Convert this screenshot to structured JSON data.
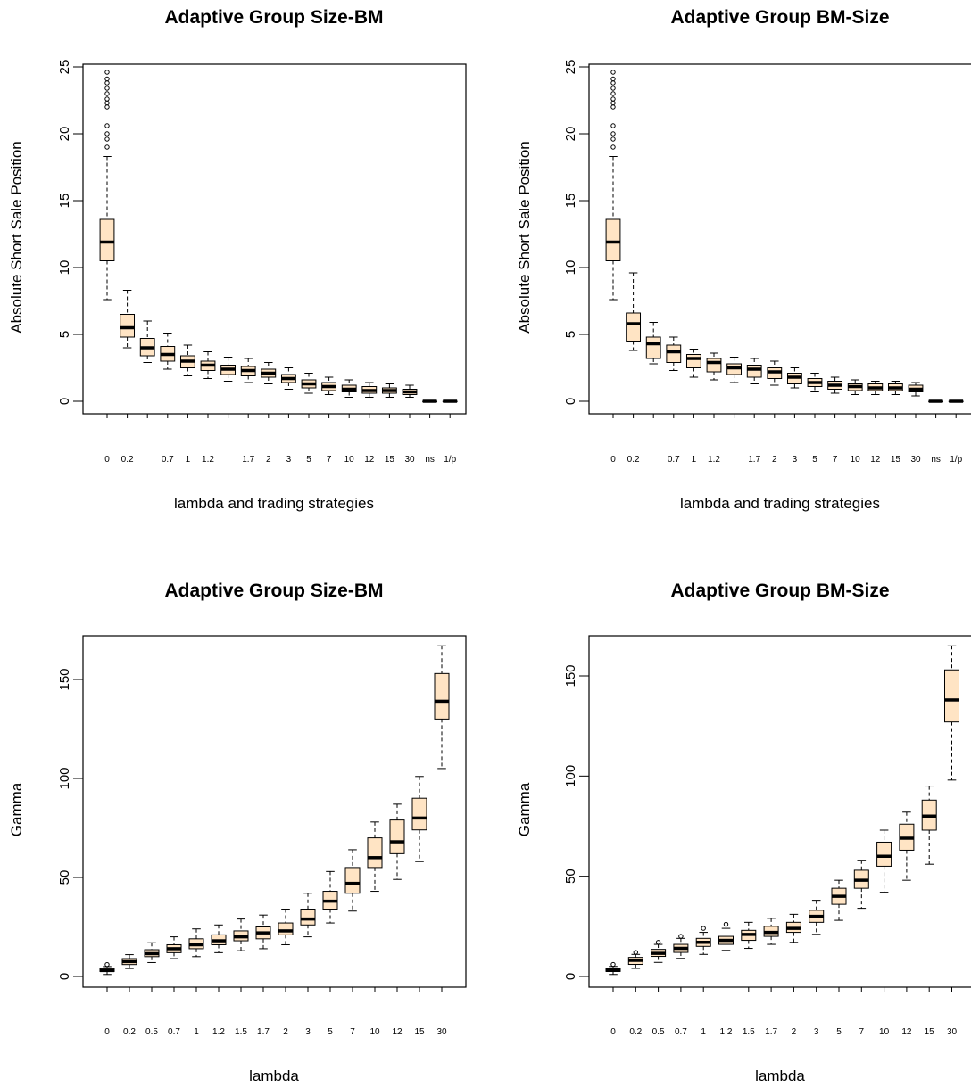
{
  "chart_data": [
    {
      "type": "boxplot",
      "title": "Adaptive Group Size-BM",
      "xlabel": "lambda and trading strategies",
      "ylabel": "Absolute Short Sale Position",
      "ylim": [
        0,
        25
      ],
      "yticks": [
        0,
        5,
        10,
        15,
        20,
        25
      ],
      "categories": [
        "0",
        "0.2",
        "",
        "0.7",
        "1",
        "1.2",
        "",
        "1.7",
        "2",
        "3",
        "5",
        "7",
        "10",
        "12",
        "15",
        "30",
        "ns",
        "1/p"
      ],
      "box_color": "#FFE4C4",
      "boxes": [
        {
          "whislo": 7.6,
          "q1": 10.5,
          "med": 11.9,
          "q3": 13.6,
          "whishi": 18.3,
          "outliers": [
            19.0,
            19.6,
            20.0,
            20.6,
            22.0,
            22.3,
            22.6,
            23.0,
            23.4,
            23.8,
            24.1,
            24.6
          ]
        },
        {
          "whislo": 4.0,
          "q1": 4.8,
          "med": 5.5,
          "q3": 6.5,
          "whishi": 8.3,
          "outliers": []
        },
        {
          "whislo": 2.9,
          "q1": 3.4,
          "med": 4.0,
          "q3": 4.7,
          "whishi": 6.0,
          "outliers": []
        },
        {
          "whislo": 2.4,
          "q1": 3.0,
          "med": 3.5,
          "q3": 4.1,
          "whishi": 5.1,
          "outliers": []
        },
        {
          "whislo": 1.9,
          "q1": 2.5,
          "med": 3.0,
          "q3": 3.4,
          "whishi": 4.2,
          "outliers": []
        },
        {
          "whislo": 1.7,
          "q1": 2.3,
          "med": 2.7,
          "q3": 3.0,
          "whishi": 3.7,
          "outliers": []
        },
        {
          "whislo": 1.5,
          "q1": 2.0,
          "med": 2.4,
          "q3": 2.7,
          "whishi": 3.3,
          "outliers": []
        },
        {
          "whislo": 1.4,
          "q1": 1.9,
          "med": 2.3,
          "q3": 2.6,
          "whishi": 3.2,
          "outliers": []
        },
        {
          "whislo": 1.3,
          "q1": 1.8,
          "med": 2.1,
          "q3": 2.4,
          "whishi": 2.9,
          "outliers": []
        },
        {
          "whislo": 0.9,
          "q1": 1.4,
          "med": 1.7,
          "q3": 2.0,
          "whishi": 2.5,
          "outliers": []
        },
        {
          "whislo": 0.6,
          "q1": 1.0,
          "med": 1.3,
          "q3": 1.6,
          "whishi": 2.1,
          "outliers": []
        },
        {
          "whislo": 0.5,
          "q1": 0.8,
          "med": 1.1,
          "q3": 1.4,
          "whishi": 1.8,
          "outliers": []
        },
        {
          "whislo": 0.3,
          "q1": 0.7,
          "med": 0.9,
          "q3": 1.2,
          "whishi": 1.6,
          "outliers": []
        },
        {
          "whislo": 0.3,
          "q1": 0.6,
          "med": 0.8,
          "q3": 1.1,
          "whishi": 1.4,
          "outliers": []
        },
        {
          "whislo": 0.3,
          "q1": 0.6,
          "med": 0.8,
          "q3": 1.0,
          "whishi": 1.3,
          "outliers": []
        },
        {
          "whislo": 0.3,
          "q1": 0.5,
          "med": 0.7,
          "q3": 0.9,
          "whishi": 1.2,
          "outliers": []
        },
        {
          "whislo": 0.0,
          "q1": 0.0,
          "med": 0.0,
          "q3": 0.0,
          "whishi": 0.0,
          "outliers": []
        },
        {
          "whislo": 0.0,
          "q1": 0.0,
          "med": 0.0,
          "q3": 0.0,
          "whishi": 0.0,
          "outliers": []
        }
      ]
    },
    {
      "type": "boxplot",
      "title": "Adaptive Group BM-Size",
      "xlabel": "lambda and trading strategies",
      "ylabel": "Absolute Short Sale Position",
      "ylim": [
        0,
        25
      ],
      "yticks": [
        0,
        5,
        10,
        15,
        20,
        25
      ],
      "categories": [
        "0",
        "0.2",
        "",
        "0.7",
        "1",
        "1.2",
        "",
        "1.7",
        "2",
        "3",
        "5",
        "7",
        "10",
        "12",
        "15",
        "30",
        "ns",
        "1/p"
      ],
      "box_color": "#FFE4C4",
      "boxes": [
        {
          "whislo": 7.6,
          "q1": 10.5,
          "med": 11.9,
          "q3": 13.6,
          "whishi": 18.3,
          "outliers": [
            19.0,
            19.6,
            20.0,
            20.6,
            22.0,
            22.3,
            22.6,
            23.0,
            23.4,
            23.8,
            24.1,
            24.6
          ]
        },
        {
          "whislo": 3.8,
          "q1": 4.5,
          "med": 5.8,
          "q3": 6.6,
          "whishi": 9.6,
          "outliers": []
        },
        {
          "whislo": 2.8,
          "q1": 3.2,
          "med": 4.3,
          "q3": 4.8,
          "whishi": 5.9,
          "outliers": []
        },
        {
          "whislo": 2.3,
          "q1": 2.9,
          "med": 3.7,
          "q3": 4.2,
          "whishi": 4.8,
          "outliers": []
        },
        {
          "whislo": 1.8,
          "q1": 2.5,
          "med": 3.2,
          "q3": 3.5,
          "whishi": 3.9,
          "outliers": []
        },
        {
          "whislo": 1.6,
          "q1": 2.2,
          "med": 2.9,
          "q3": 3.2,
          "whishi": 3.6,
          "outliers": []
        },
        {
          "whislo": 1.4,
          "q1": 2.0,
          "med": 2.5,
          "q3": 2.8,
          "whishi": 3.3,
          "outliers": []
        },
        {
          "whislo": 1.3,
          "q1": 1.8,
          "med": 2.4,
          "q3": 2.7,
          "whishi": 3.2,
          "outliers": []
        },
        {
          "whislo": 1.2,
          "q1": 1.7,
          "med": 2.2,
          "q3": 2.5,
          "whishi": 3.0,
          "outliers": []
        },
        {
          "whislo": 1.0,
          "q1": 1.3,
          "med": 1.8,
          "q3": 2.1,
          "whishi": 2.5,
          "outliers": []
        },
        {
          "whislo": 0.7,
          "q1": 1.1,
          "med": 1.4,
          "q3": 1.7,
          "whishi": 2.1,
          "outliers": []
        },
        {
          "whislo": 0.6,
          "q1": 0.9,
          "med": 1.2,
          "q3": 1.5,
          "whishi": 1.8,
          "outliers": []
        },
        {
          "whislo": 0.5,
          "q1": 0.8,
          "med": 1.1,
          "q3": 1.3,
          "whishi": 1.6,
          "outliers": []
        },
        {
          "whislo": 0.5,
          "q1": 0.8,
          "med": 1.0,
          "q3": 1.3,
          "whishi": 1.5,
          "outliers": []
        },
        {
          "whislo": 0.5,
          "q1": 0.8,
          "med": 1.0,
          "q3": 1.3,
          "whishi": 1.5,
          "outliers": []
        },
        {
          "whislo": 0.4,
          "q1": 0.7,
          "med": 0.9,
          "q3": 1.2,
          "whishi": 1.4,
          "outliers": []
        },
        {
          "whislo": 0.0,
          "q1": 0.0,
          "med": 0.0,
          "q3": 0.0,
          "whishi": 0.0,
          "outliers": []
        },
        {
          "whislo": 0.0,
          "q1": 0.0,
          "med": 0.0,
          "q3": 0.0,
          "whishi": 0.0,
          "outliers": []
        }
      ]
    },
    {
      "type": "boxplot",
      "title": "Adaptive Group Size-BM",
      "xlabel": "lambda",
      "ylabel": "Gamma",
      "ylim": [
        0,
        170
      ],
      "yticks": [
        0,
        50,
        100,
        150
      ],
      "categories": [
        "0",
        "0.2",
        "0.5",
        "0.7",
        "1",
        "1.2",
        "1.5",
        "1.7",
        "2",
        "3",
        "5",
        "7",
        "10",
        "12",
        "15",
        "30"
      ],
      "box_color": "#FFE4C4",
      "boxes": [
        {
          "whislo": 1,
          "q1": 2.5,
          "med": 3,
          "q3": 4,
          "whishi": 5,
          "outliers": [
            6
          ]
        },
        {
          "whislo": 4,
          "q1": 6,
          "med": 7.5,
          "q3": 9,
          "whishi": 11,
          "outliers": []
        },
        {
          "whislo": 7,
          "q1": 10,
          "med": 11.5,
          "q3": 13.5,
          "whishi": 17,
          "outliers": []
        },
        {
          "whislo": 9,
          "q1": 12,
          "med": 14,
          "q3": 16,
          "whishi": 20,
          "outliers": []
        },
        {
          "whislo": 10,
          "q1": 14,
          "med": 16,
          "q3": 19,
          "whishi": 24,
          "outliers": []
        },
        {
          "whislo": 12,
          "q1": 16,
          "med": 18,
          "q3": 21,
          "whishi": 26,
          "outliers": []
        },
        {
          "whislo": 13,
          "q1": 18,
          "med": 20,
          "q3": 23,
          "whishi": 29,
          "outliers": []
        },
        {
          "whislo": 14,
          "q1": 19,
          "med": 22,
          "q3": 25,
          "whishi": 31,
          "outliers": []
        },
        {
          "whislo": 16,
          "q1": 21,
          "med": 23,
          "q3": 27,
          "whishi": 34,
          "outliers": []
        },
        {
          "whislo": 20,
          "q1": 26,
          "med": 29,
          "q3": 34,
          "whishi": 42,
          "outliers": []
        },
        {
          "whislo": 27,
          "q1": 34,
          "med": 38,
          "q3": 43,
          "whishi": 53,
          "outliers": []
        },
        {
          "whislo": 33,
          "q1": 42,
          "med": 47,
          "q3": 55,
          "whishi": 64,
          "outliers": []
        },
        {
          "whislo": 43,
          "q1": 55,
          "med": 60,
          "q3": 70,
          "whishi": 78,
          "outliers": []
        },
        {
          "whislo": 49,
          "q1": 62,
          "med": 68,
          "q3": 79,
          "whishi": 87,
          "outliers": []
        },
        {
          "whislo": 58,
          "q1": 74,
          "med": 80,
          "q3": 90,
          "whishi": 101,
          "outliers": []
        },
        {
          "whislo": 105,
          "q1": 130,
          "med": 139,
          "q3": 153,
          "whishi": 167,
          "outliers": []
        }
      ]
    },
    {
      "type": "boxplot",
      "title": "Adaptive Group BM-Size",
      "xlabel": "lambda",
      "ylabel": "Gamma",
      "ylim": [
        0,
        170
      ],
      "yticks": [
        0,
        50,
        100,
        150
      ],
      "categories": [
        "0",
        "0.2",
        "0.5",
        "0.7",
        "1",
        "1.2",
        "1.5",
        "1.7",
        "2",
        "3",
        "5",
        "7",
        "10",
        "12",
        "15",
        "30"
      ],
      "box_color": "#FFE4C4",
      "boxes": [
        {
          "whislo": 1,
          "q1": 2.5,
          "med": 3,
          "q3": 4,
          "whishi": 5,
          "outliers": [
            6
          ]
        },
        {
          "whislo": 4,
          "q1": 6,
          "med": 8,
          "q3": 9.5,
          "whishi": 11,
          "outliers": [
            12
          ]
        },
        {
          "whislo": 7,
          "q1": 10,
          "med": 11.5,
          "q3": 13.5,
          "whishi": 16,
          "outliers": [
            17
          ]
        },
        {
          "whislo": 9,
          "q1": 12,
          "med": 14,
          "q3": 16,
          "whishi": 19,
          "outliers": [
            20
          ]
        },
        {
          "whislo": 11,
          "q1": 15,
          "med": 17,
          "q3": 19,
          "whishi": 22,
          "outliers": [
            24
          ]
        },
        {
          "whislo": 13,
          "q1": 16,
          "med": 18,
          "q3": 20,
          "whishi": 24,
          "outliers": [
            26
          ]
        },
        {
          "whislo": 14,
          "q1": 18,
          "med": 21,
          "q3": 23,
          "whishi": 27,
          "outliers": []
        },
        {
          "whislo": 16,
          "q1": 20,
          "med": 22,
          "q3": 25,
          "whishi": 29,
          "outliers": []
        },
        {
          "whislo": 17,
          "q1": 22,
          "med": 24,
          "q3": 27,
          "whishi": 31,
          "outliers": []
        },
        {
          "whislo": 21,
          "q1": 27,
          "med": 30,
          "q3": 33,
          "whishi": 38,
          "outliers": []
        },
        {
          "whislo": 28,
          "q1": 36,
          "med": 40,
          "q3": 44,
          "whishi": 48,
          "outliers": []
        },
        {
          "whislo": 34,
          "q1": 44,
          "med": 48,
          "q3": 53,
          "whishi": 58,
          "outliers": []
        },
        {
          "whislo": 42,
          "q1": 55,
          "med": 60,
          "q3": 67,
          "whishi": 73,
          "outliers": []
        },
        {
          "whislo": 48,
          "q1": 63,
          "med": 69,
          "q3": 76,
          "whishi": 82,
          "outliers": []
        },
        {
          "whislo": 56,
          "q1": 73,
          "med": 80,
          "q3": 88,
          "whishi": 95,
          "outliers": []
        },
        {
          "whislo": 98,
          "q1": 127,
          "med": 138,
          "q3": 153,
          "whishi": 165,
          "outliers": []
        }
      ]
    }
  ]
}
